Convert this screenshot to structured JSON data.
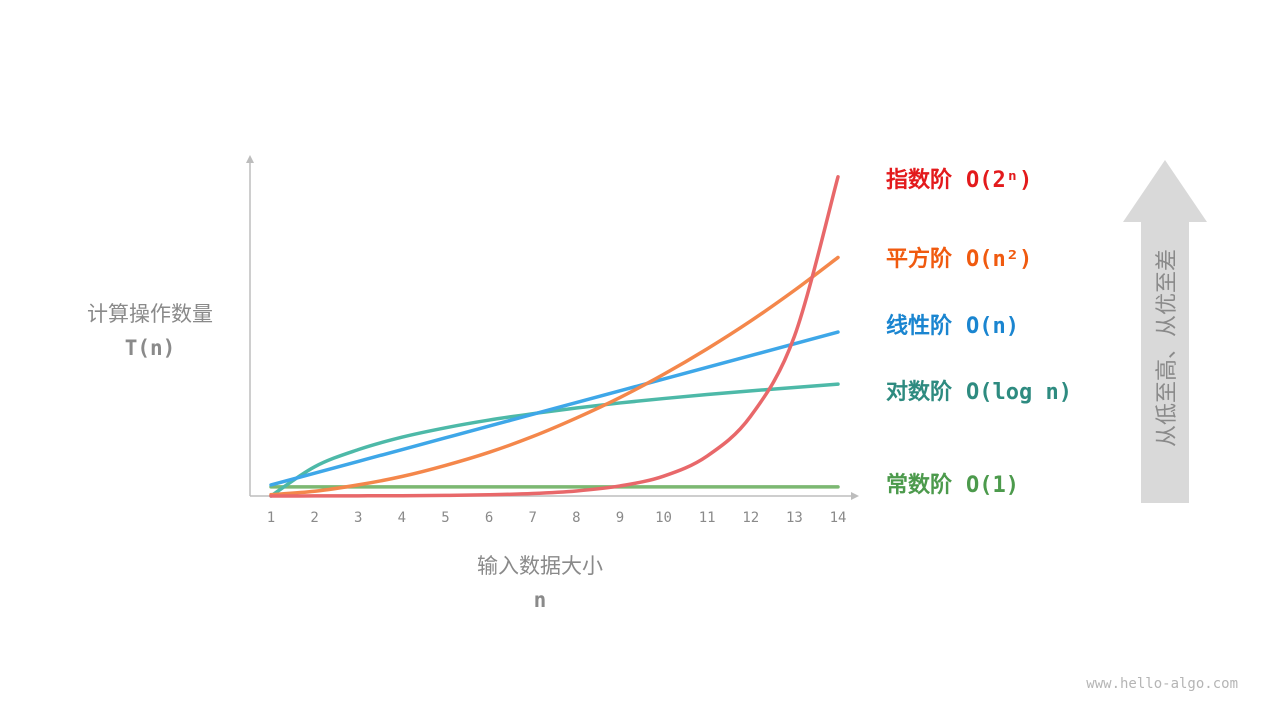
{
  "chart_data": {
    "type": "line",
    "ylabel": "计算操作数量",
    "ylabel_symbol": "T(n)",
    "xlabel": "输入数据大小",
    "xlabel_symbol": "n",
    "x": [
      1,
      2,
      3,
      4,
      5,
      6,
      7,
      8,
      9,
      10,
      11,
      12,
      13,
      14
    ],
    "xlim": [
      1,
      14
    ],
    "ylim": [
      0,
      100
    ],
    "y_ticks_shown": false,
    "grid": false,
    "legend_placement": "right",
    "series": [
      {
        "name": "指数阶",
        "notation": "O(2ⁿ)",
        "color": "#e8686a",
        "label_color": "#e31a1c",
        "values": [
          0.01,
          0.02,
          0.05,
          0.09,
          0.19,
          0.37,
          0.74,
          1.5,
          3.0,
          5.9,
          11.9,
          23.8,
          47.5,
          95.0
        ]
      },
      {
        "name": "平方阶",
        "notation": "O(n²)",
        "color": "#f4874b",
        "label_color": "#f05a0f",
        "values": [
          0.4,
          1.4,
          3.3,
          5.8,
          9.1,
          13.0,
          17.7,
          23.2,
          29.3,
          36.2,
          43.8,
          52.1,
          61.2,
          71.0
        ]
      },
      {
        "name": "线性阶",
        "notation": "O(n)",
        "color": "#3ea7e8",
        "label_color": "#1a85d0",
        "values": [
          3.3,
          6.8,
          10.3,
          13.8,
          17.3,
          20.8,
          24.3,
          27.8,
          31.3,
          34.8,
          38.3,
          41.8,
          45.3,
          48.8
        ]
      },
      {
        "name": "对数阶",
        "notation": "O(log n)",
        "color": "#4db9a8",
        "label_color": "#2e8b80",
        "values": [
          0,
          8.7,
          13.8,
          17.5,
          20.3,
          22.6,
          24.5,
          26.2,
          27.7,
          29.0,
          30.2,
          31.3,
          32.3,
          33.3
        ]
      },
      {
        "name": "常数阶",
        "notation": "O(1)",
        "color": "#7cb872",
        "label_color": "#4c9a4c",
        "values": [
          2.7,
          2.7,
          2.7,
          2.7,
          2.7,
          2.7,
          2.7,
          2.7,
          2.7,
          2.7,
          2.7,
          2.7,
          2.7,
          2.7
        ]
      }
    ]
  },
  "side_arrow": {
    "label": "从低至高、从优至差",
    "color": "#d9d9d9",
    "direction": "up"
  },
  "footer": "www.hello-algo.com"
}
